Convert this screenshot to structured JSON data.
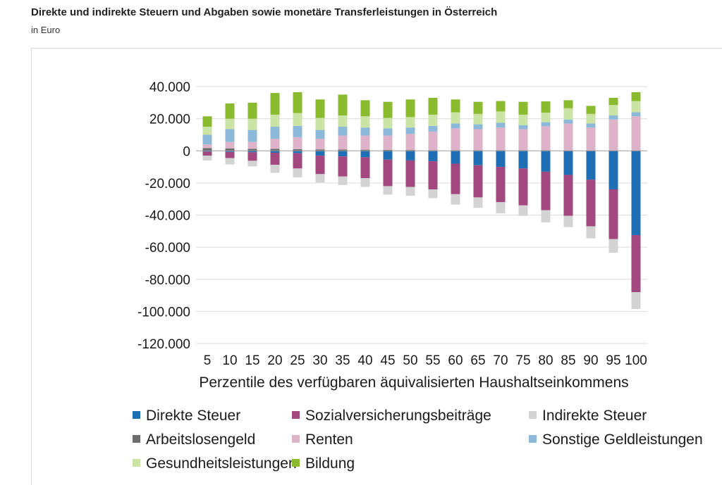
{
  "header": {
    "title": "Direkte und indirekte Steuern und Abgaben sowie monetäre Transferleistungen in Österreich",
    "subtitle": "in Euro"
  },
  "chart_data": {
    "type": "bar",
    "stacked": true,
    "xlabel": "Perzentile des verfügbaren äquivalisierten Haushaltseinkommens",
    "ylabel": "",
    "ylim": [
      -120000,
      40000
    ],
    "yticks": [
      40000,
      20000,
      0,
      -20000,
      -40000,
      -60000,
      -80000,
      -100000,
      -120000
    ],
    "ytick_labels": [
      "40.000",
      "20.000",
      "0",
      "-20.000",
      "-40.000",
      "-60.000",
      "-80.000",
      "-100.000",
      "-120.000"
    ],
    "grid": true,
    "legend_position": "bottom",
    "categories": [
      "5",
      "10",
      "15",
      "20",
      "25",
      "30",
      "35",
      "40",
      "45",
      "50",
      "55",
      "60",
      "65",
      "70",
      "75",
      "80",
      "85",
      "90",
      "95",
      "100"
    ],
    "series": [
      {
        "name": "Direkte Steuer",
        "color": "#1f6fb5",
        "stack": "neg",
        "values": [
          -500,
          -700,
          -900,
          -1200,
          -1500,
          -3000,
          -3500,
          -4000,
          -5500,
          -6000,
          -6500,
          -8000,
          -9000,
          -10000,
          -11000,
          -13000,
          -15000,
          -18000,
          -24000,
          -52500
        ]
      },
      {
        "name": "Sozialversicherungsbeiträge",
        "color": "#a3477f",
        "stack": "neg",
        "values": [
          -2500,
          -3800,
          -5300,
          -7500,
          -9500,
          -11500,
          -12500,
          -13000,
          -16500,
          -16500,
          -17500,
          -19000,
          -20000,
          -22000,
          -23000,
          -24000,
          -25500,
          -29000,
          -31000,
          -35500
        ]
      },
      {
        "name": "Indirekte Steuer",
        "color": "#d3d3d3",
        "stack": "neg",
        "values": [
          -3000,
          -4000,
          -3500,
          -5000,
          -5500,
          -5200,
          -5300,
          -5500,
          -5300,
          -5500,
          -5500,
          -6500,
          -6500,
          -7000,
          -6500,
          -7500,
          -7000,
          -7500,
          -8500,
          -10500
        ]
      },
      {
        "name": "Arbeitslosengeld",
        "color": "#6d6d6d",
        "stack": "pos",
        "values": [
          1700,
          1500,
          1200,
          1200,
          1000,
          900,
          800,
          700,
          600,
          500,
          400,
          400,
          300,
          300,
          300,
          300,
          200,
          200,
          200,
          200
        ]
      },
      {
        "name": "Renten",
        "color": "#dcb3c9",
        "stack": "pos",
        "values": [
          2300,
          4000,
          4300,
          6300,
          7500,
          6600,
          8700,
          8800,
          8900,
          10000,
          11600,
          13600,
          13200,
          14200,
          13200,
          15000,
          16800,
          14300,
          19300,
          21300
        ]
      },
      {
        "name": "Sonstige Geldleistungen",
        "color": "#8cb8da",
        "stack": "pos",
        "values": [
          6000,
          8000,
          7500,
          7500,
          7000,
          5500,
          5500,
          5000,
          4500,
          4000,
          3500,
          3000,
          3000,
          3000,
          2500,
          2500,
          2500,
          2500,
          2500,
          2500
        ]
      },
      {
        "name": "Gesundheitsleistungen",
        "color": "#c9e4a4",
        "stack": "pos",
        "values": [
          5000,
          6500,
          7000,
          7500,
          8000,
          7500,
          7000,
          7000,
          6500,
          6500,
          7000,
          7000,
          6500,
          7000,
          6500,
          6000,
          7000,
          6000,
          6500,
          7000
        ]
      },
      {
        "name": "Bildung",
        "color": "#8aba2d",
        "stack": "pos",
        "values": [
          6500,
          9500,
          10000,
          13500,
          13000,
          11500,
          13000,
          10000,
          10000,
          11000,
          10500,
          8000,
          7500,
          6500,
          8000,
          7000,
          5000,
          5000,
          4500,
          5500
        ]
      }
    ]
  }
}
